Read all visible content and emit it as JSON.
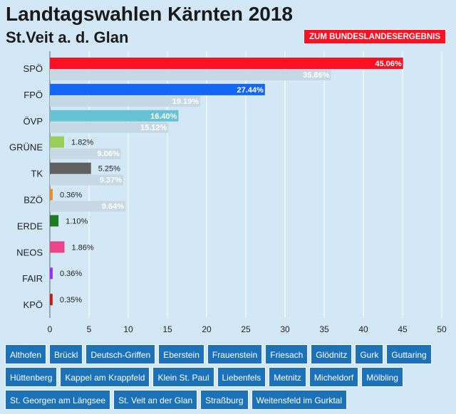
{
  "header": {
    "title": "Landtagswahlen Kärnten 2018",
    "subtitle": "St.Veit a. d. Glan",
    "state_button": "ZUM BUNDESLANDESERGEBNIS"
  },
  "chart_data": {
    "type": "bar",
    "orientation": "horizontal",
    "categories": [
      "SPÖ",
      "FPÖ",
      "ÖVP",
      "GRÜNE",
      "TK",
      "BZÖ",
      "ERDE",
      "NEOS",
      "FAIR",
      "KPÖ"
    ],
    "series": [
      {
        "values": [
          45.06,
          27.44,
          16.4,
          1.82,
          5.25,
          0.36,
          1.1,
          1.86,
          0.36,
          0.35
        ],
        "labels": [
          "45.06%",
          "27.44%",
          "16.40%",
          "1.82%",
          "5.25%",
          "0.36%",
          "1.10%",
          "1.86%",
          "0.36%",
          "0.35%"
        ],
        "colors": [
          "#ff1020",
          "#1466f5",
          "#66c3d3",
          "#99d158",
          "#606060",
          "#f08a24",
          "#1e7a1e",
          "#e8458a",
          "#9b30ff",
          "#d01818"
        ]
      },
      {
        "values": [
          35.86,
          19.19,
          15.12,
          9.06,
          9.37,
          9.64,
          null,
          null,
          null,
          null
        ],
        "labels": [
          "35.86%",
          "19.19%",
          "15.12%",
          "9.06%",
          "9.37%",
          "9.64%",
          null,
          null,
          null,
          null
        ],
        "color": "#c5d8e4"
      }
    ],
    "xlim": [
      0,
      50
    ],
    "xticks": [
      "0",
      "5",
      "10",
      "15",
      "20",
      "25",
      "30",
      "35",
      "40",
      "45",
      "50"
    ],
    "grid": true
  },
  "municipalities": [
    "Althofen",
    "Brückl",
    "Deutsch-Griffen",
    "Eberstein",
    "Frauenstein",
    "Friesach",
    "Glödnitz",
    "Gurk",
    "Guttaring",
    "Hüttenberg",
    "Kappel am Krappfeld",
    "Klein St. Paul",
    "Liebenfels",
    "Metnitz",
    "Micheldorf",
    "Mölbling",
    "St. Georgen am Längsee",
    "St. Veit an der Glan",
    "Straßburg",
    "Weitensfeld im Gurktal"
  ]
}
